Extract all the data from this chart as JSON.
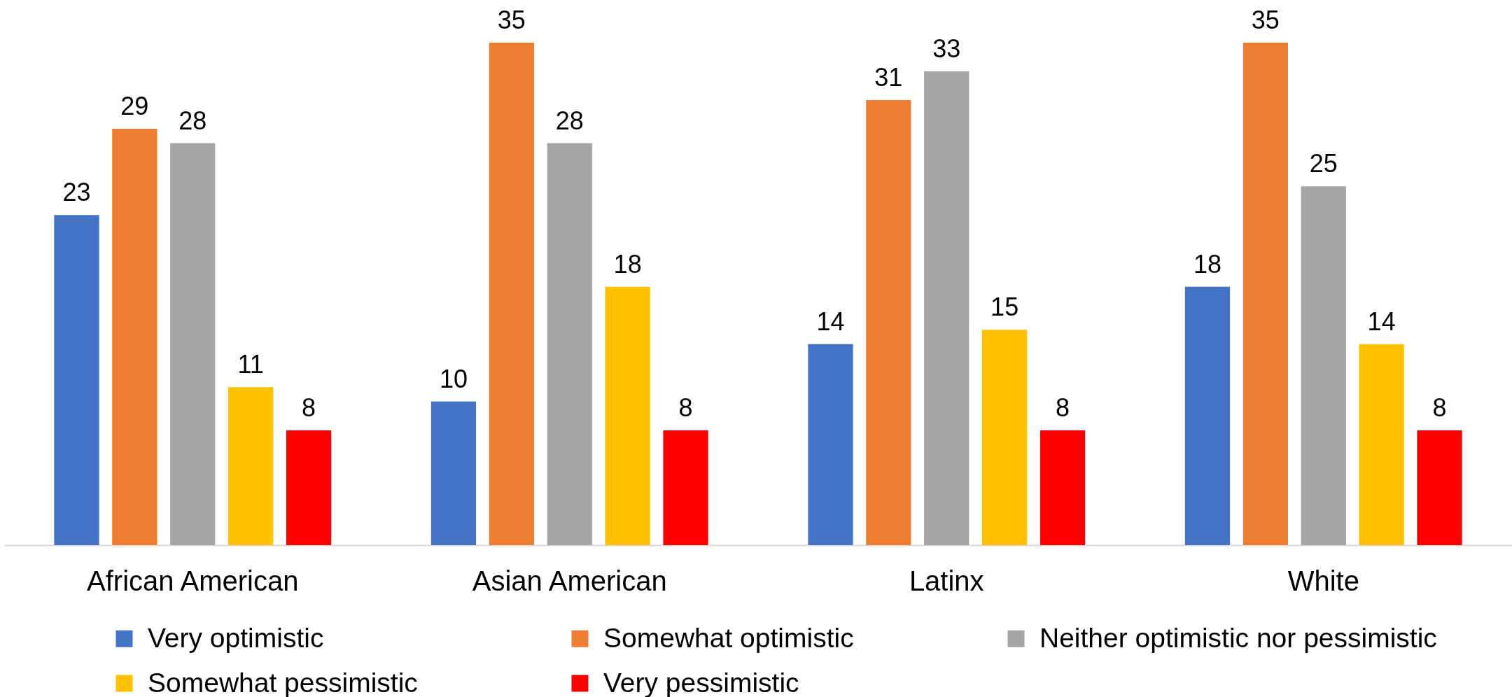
{
  "chart_data": {
    "type": "bar",
    "categories": [
      "African American",
      "Asian American",
      "Latinx",
      "White"
    ],
    "series": [
      {
        "name": "Very optimistic",
        "color": "#4472c4",
        "values": [
          23,
          10,
          14,
          18
        ]
      },
      {
        "name": "Somewhat optimistic",
        "color": "#ed7d31",
        "values": [
          29,
          35,
          31,
          35
        ]
      },
      {
        "name": "Neither optimistic nor pessimistic",
        "color": "#a5a5a5",
        "values": [
          28,
          28,
          33,
          25
        ]
      },
      {
        "name": "Somewhat pessimistic",
        "color": "#ffc000",
        "values": [
          11,
          18,
          15,
          14
        ]
      },
      {
        "name": "Very pessimistic",
        "color": "#ff0000",
        "values": [
          8,
          8,
          8,
          8
        ]
      }
    ],
    "data_labels": true,
    "legend": "bottom",
    "tick_labels": "x"
  }
}
